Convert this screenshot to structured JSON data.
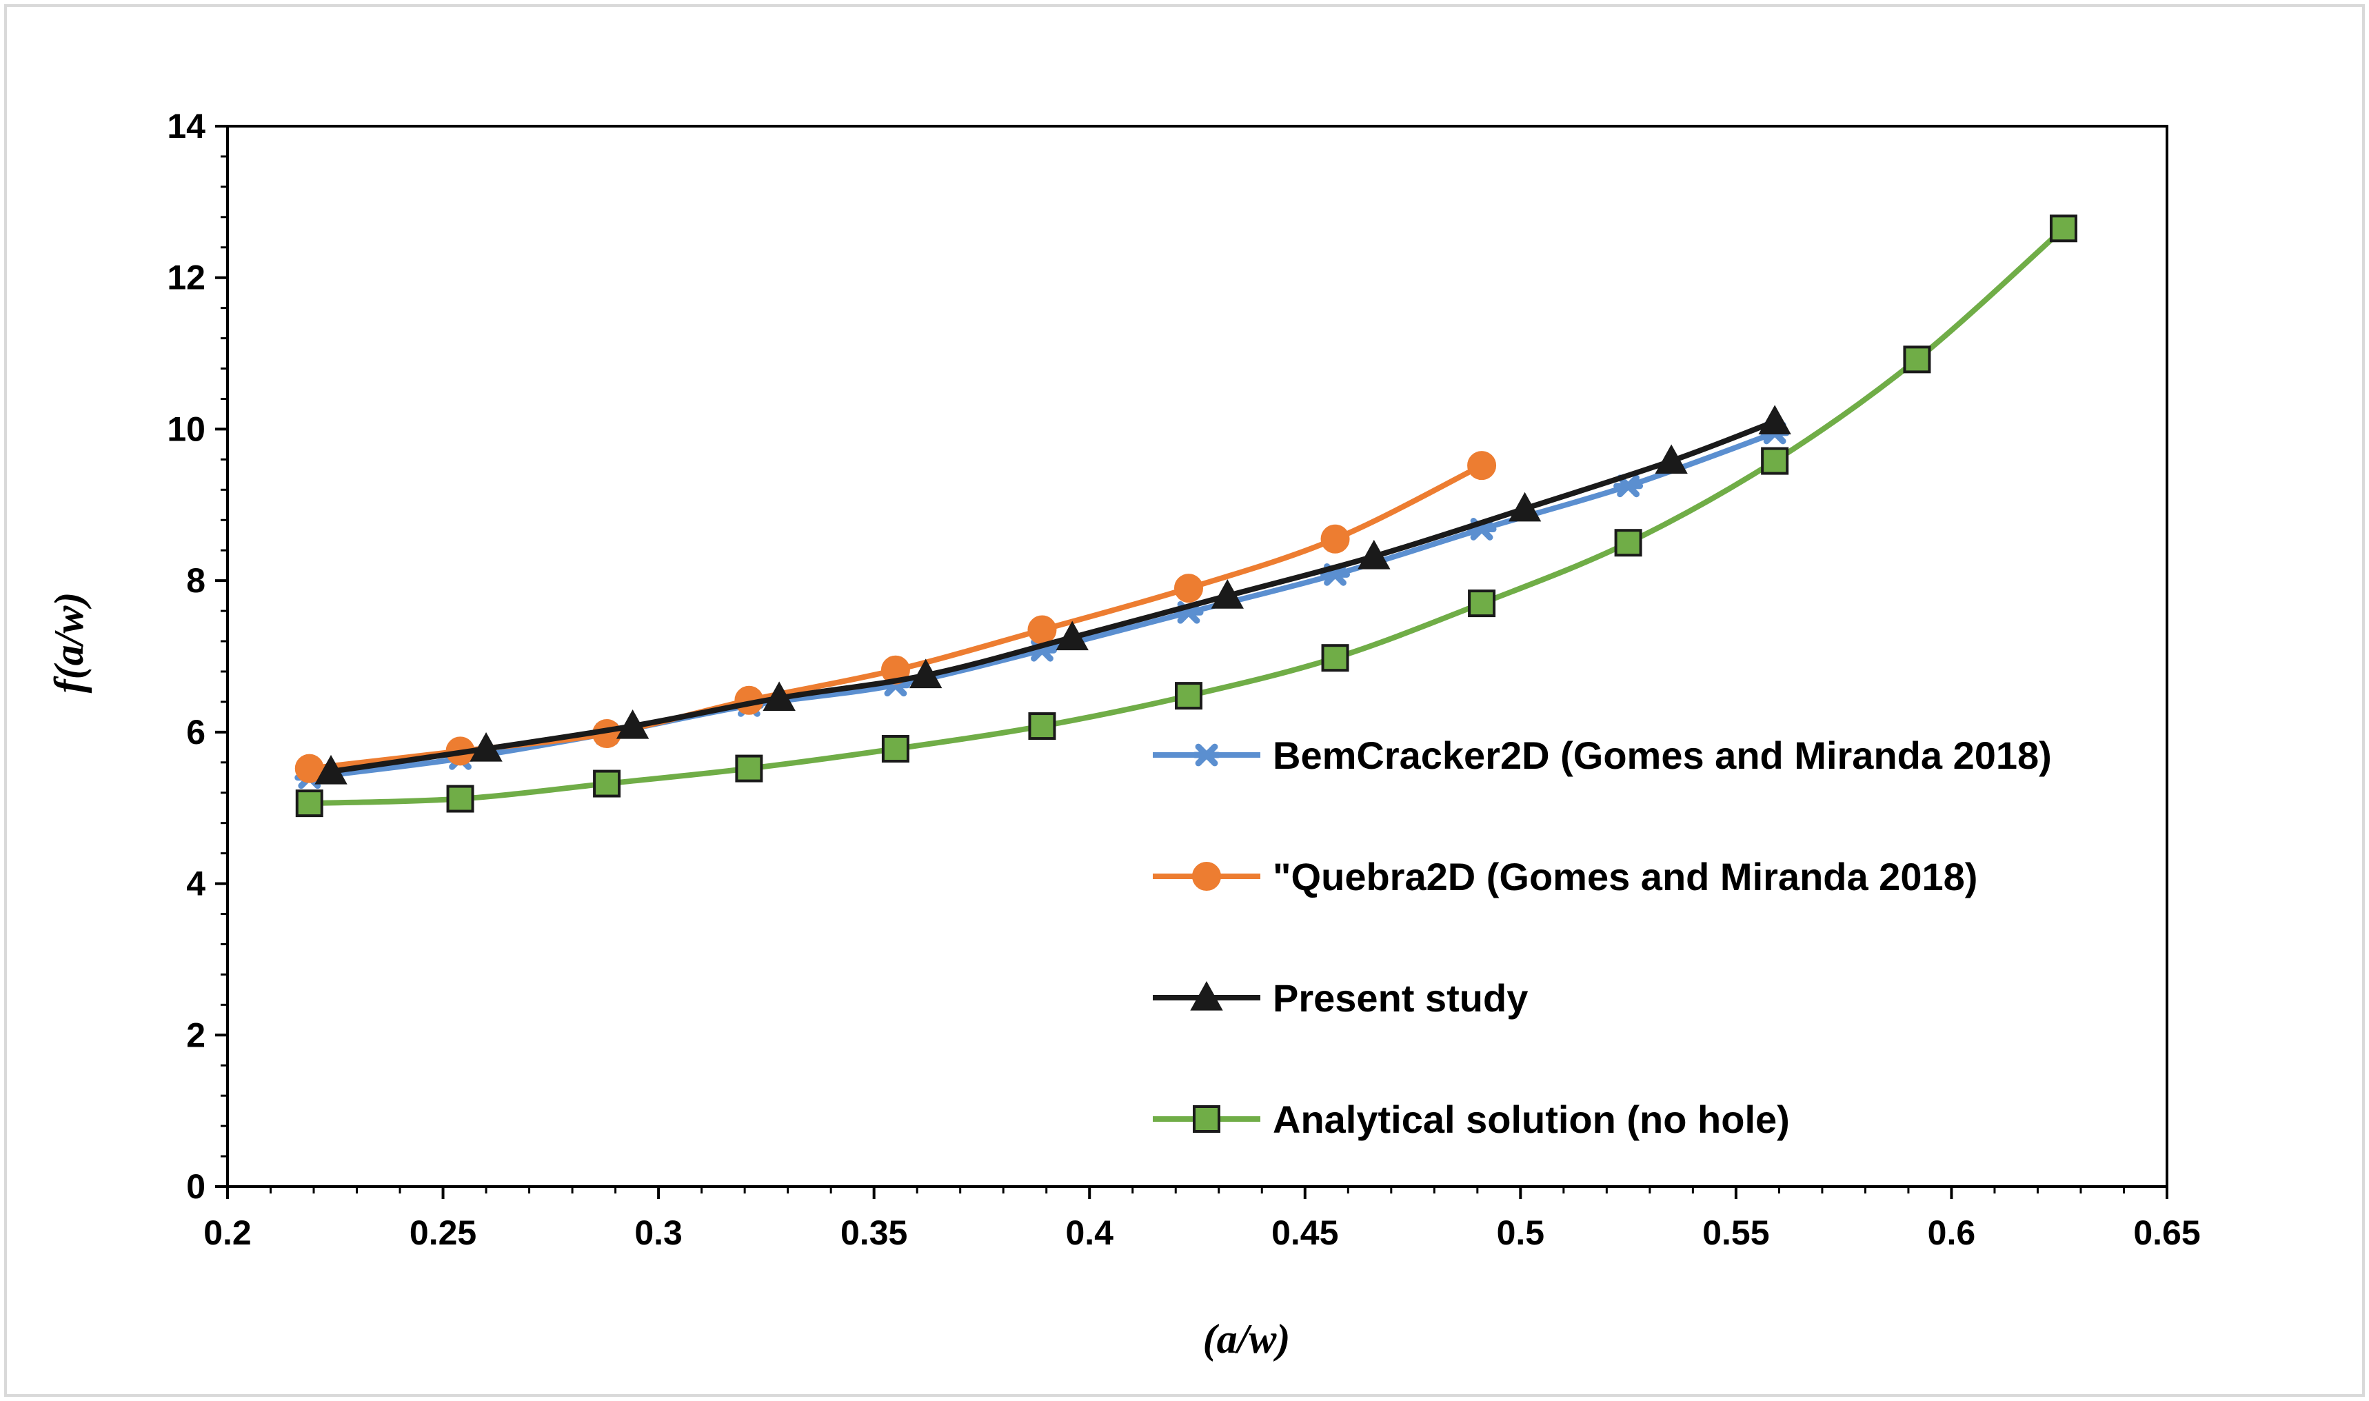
{
  "chart_data": {
    "type": "line",
    "title": "",
    "xlabel": "(a/w)",
    "ylabel": "f(a/w)",
    "xlim": [
      0.2,
      0.65
    ],
    "ylim": [
      0,
      14
    ],
    "x_ticks": [
      "0.2",
      "0.25",
      "0.3",
      "0.35",
      "0.4",
      "0.45",
      "0.5",
      "0.55",
      "0.6",
      "0.65"
    ],
    "y_ticks": [
      "0",
      "2",
      "4",
      "6",
      "8",
      "10",
      "12",
      "14"
    ],
    "legend_position": "right",
    "series": [
      {
        "name": "BemCracker2D  (Gomes and Miranda 2018)",
        "color": "#5B8FD0",
        "marker": "star",
        "x": [
          0.219,
          0.254,
          0.288,
          0.321,
          0.355,
          0.389,
          0.423,
          0.457,
          0.491,
          0.525,
          0.559
        ],
        "y": [
          5.4,
          5.65,
          5.98,
          6.35,
          6.62,
          7.08,
          7.58,
          8.08,
          8.68,
          9.25,
          9.95
        ]
      },
      {
        "name": "\"Quebra2D  (Gomes and Miranda 2018)",
        "color": "#ED7D31",
        "marker": "circle",
        "x": [
          0.219,
          0.254,
          0.288,
          0.321,
          0.355,
          0.389,
          0.423,
          0.457,
          0.491
        ],
        "y": [
          5.52,
          5.75,
          5.98,
          6.42,
          6.82,
          7.35,
          7.9,
          8.55,
          9.52
        ]
      },
      {
        "name": "Present study",
        "color": "#1A1A1A",
        "marker": "triangle",
        "x": [
          0.224,
          0.26,
          0.294,
          0.328,
          0.362,
          0.396,
          0.432,
          0.466,
          0.501,
          0.535,
          0.559
        ],
        "y": [
          5.48,
          5.78,
          6.08,
          6.45,
          6.75,
          7.25,
          7.8,
          8.32,
          8.95,
          9.58,
          10.1
        ]
      },
      {
        "name": "Analytical solution (no hole)",
        "color": "#70AD47",
        "marker_fill": "#70AD47",
        "marker_stroke": "#1A1A1A",
        "marker": "square",
        "x": [
          0.219,
          0.254,
          0.288,
          0.321,
          0.355,
          0.389,
          0.423,
          0.457,
          0.491,
          0.525,
          0.559,
          0.592,
          0.626
        ],
        "y": [
          5.06,
          5.12,
          5.32,
          5.52,
          5.78,
          6.08,
          6.48,
          6.98,
          7.7,
          8.5,
          9.58,
          10.92,
          12.65
        ]
      }
    ]
  }
}
